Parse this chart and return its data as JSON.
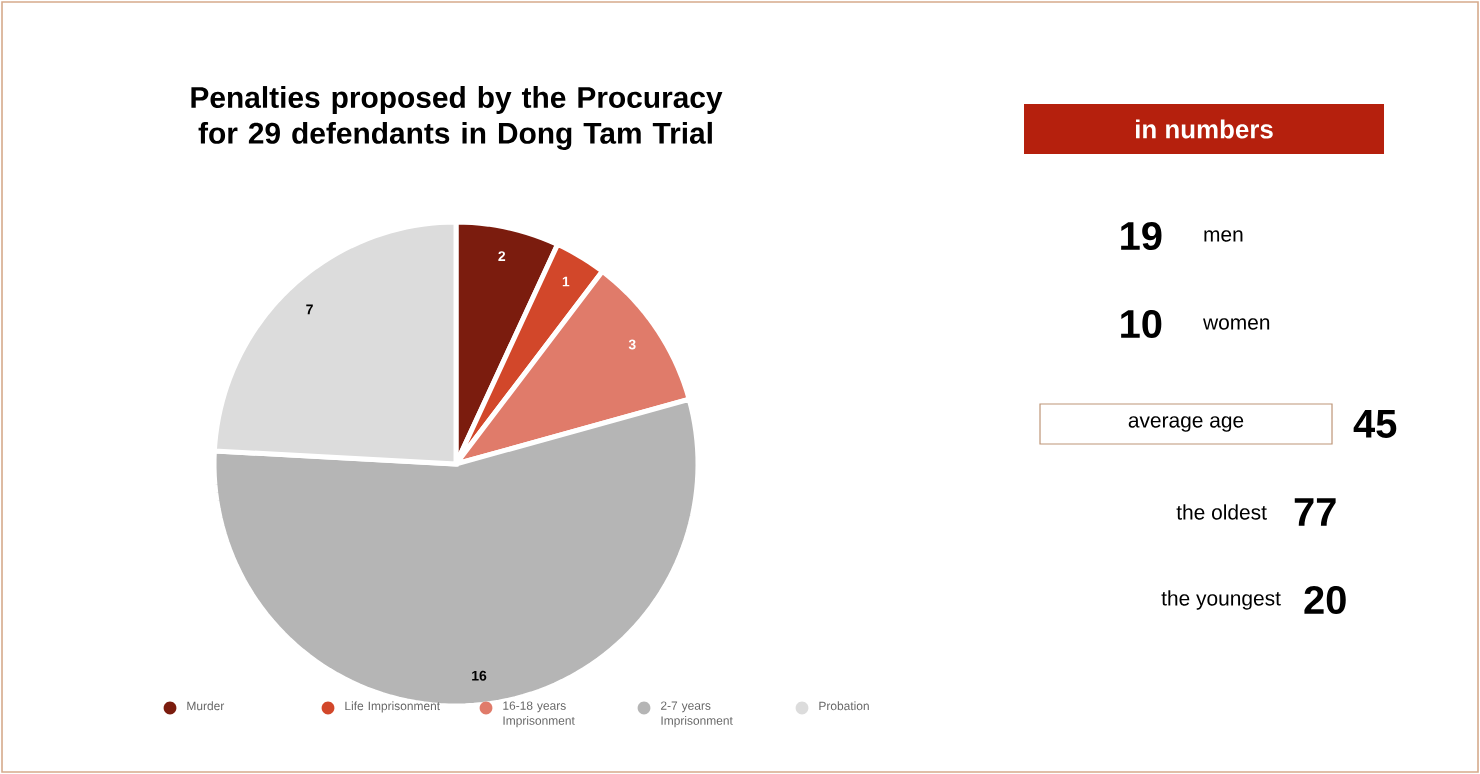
{
  "chart_data": [
    {
      "type": "pie",
      "title": "Penalties proposed by the Procuracy for 29 defendants in Dong Tam Trial",
      "categories": [
        "Murder",
        "Life Imprisonment",
        "16-18 years Imprisonment",
        "2-7 years Imprisonment",
        "Probation"
      ],
      "values": [
        2,
        1,
        3,
        16,
        7
      ],
      "colors": [
        "#7b1c0e",
        "#d2472a",
        "#e07b6a",
        "#b5b5b5",
        "#dcdcdc"
      ],
      "data_labels": true,
      "legend": "bottom"
    },
    {
      "type": "other",
      "title": "in numbers",
      "annotations": [
        "19",
        "men",
        "10",
        "women",
        "average age",
        "45",
        "the oldest",
        "77",
        "the youngest",
        "20"
      ]
    }
  ]
}
